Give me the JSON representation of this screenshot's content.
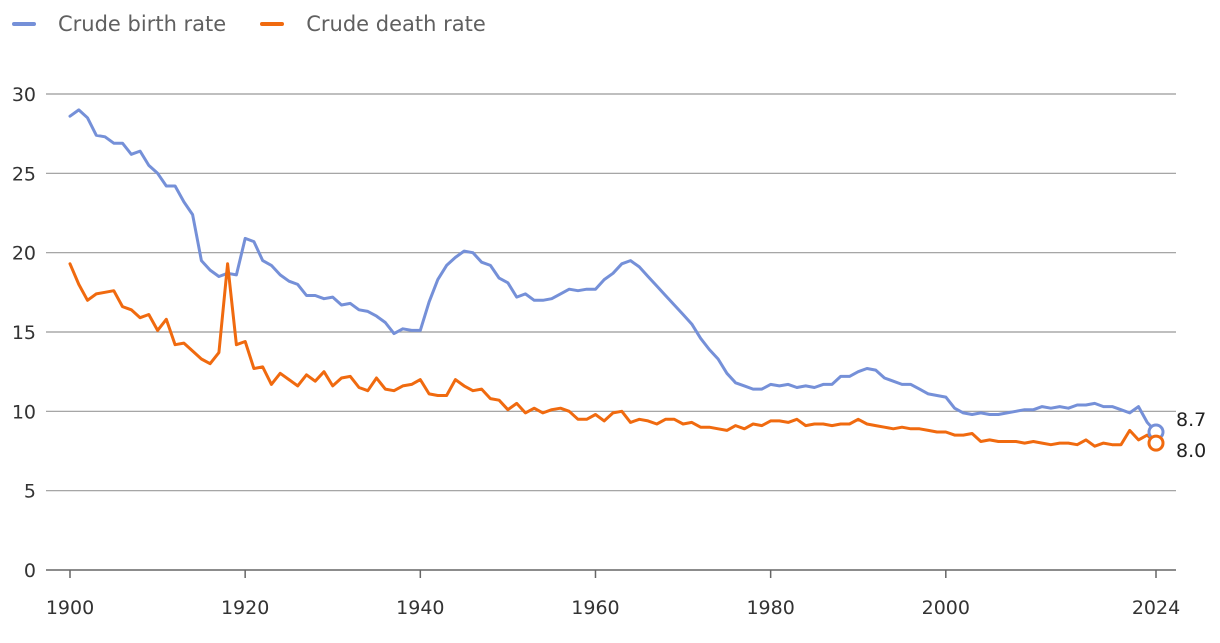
{
  "colors": {
    "birth": "#7590d8",
    "death": "#f06a0f",
    "grid": "#999999",
    "axis": "#666666",
    "text": "#333333"
  },
  "legend": [
    {
      "label": "Crude birth rate",
      "color": "#7590d8"
    },
    {
      "label": "Crude death rate",
      "color": "#f06a0f"
    }
  ],
  "end_labels": {
    "birth": "8.7",
    "death": "8.0"
  },
  "chart_data": {
    "type": "line",
    "title": "",
    "xlabel": "",
    "ylabel": "",
    "xlim": [
      1900,
      2024
    ],
    "ylim": [
      0,
      30
    ],
    "x_ticks": [
      1900,
      1920,
      1940,
      1960,
      1980,
      2000,
      2024
    ],
    "y_ticks": [
      0,
      5,
      10,
      15,
      20,
      25,
      30
    ],
    "grid": true,
    "legend_position": "top-left",
    "x": [
      1900,
      1901,
      1902,
      1903,
      1904,
      1905,
      1906,
      1907,
      1908,
      1909,
      1910,
      1911,
      1912,
      1913,
      1914,
      1915,
      1916,
      1917,
      1918,
      1919,
      1920,
      1921,
      1922,
      1923,
      1924,
      1925,
      1926,
      1927,
      1928,
      1929,
      1930,
      1931,
      1932,
      1933,
      1934,
      1935,
      1936,
      1937,
      1938,
      1939,
      1940,
      1941,
      1942,
      1943,
      1944,
      1945,
      1946,
      1947,
      1948,
      1949,
      1950,
      1951,
      1952,
      1953,
      1954,
      1955,
      1956,
      1957,
      1958,
      1959,
      1960,
      1961,
      1962,
      1963,
      1964,
      1965,
      1966,
      1967,
      1968,
      1969,
      1970,
      1971,
      1972,
      1973,
      1974,
      1975,
      1976,
      1977,
      1978,
      1979,
      1980,
      1981,
      1982,
      1983,
      1984,
      1985,
      1986,
      1987,
      1988,
      1989,
      1990,
      1991,
      1992,
      1993,
      1994,
      1995,
      1996,
      1997,
      1998,
      1999,
      2000,
      2001,
      2002,
      2003,
      2004,
      2005,
      2006,
      2007,
      2008,
      2009,
      2010,
      2011,
      2012,
      2013,
      2014,
      2015,
      2016,
      2017,
      2018,
      2019,
      2020,
      2021,
      2022,
      2023,
      2024
    ],
    "series": [
      {
        "name": "Crude birth rate",
        "values": [
          28.6,
          29.0,
          28.5,
          27.4,
          27.3,
          26.9,
          26.9,
          26.2,
          26.4,
          25.5,
          25.0,
          24.2,
          24.2,
          23.2,
          22.4,
          19.5,
          18.9,
          18.5,
          18.7,
          18.6,
          20.9,
          20.7,
          19.5,
          19.2,
          18.6,
          18.2,
          18.0,
          17.3,
          17.3,
          17.1,
          17.2,
          16.7,
          16.8,
          16.4,
          16.3,
          16.0,
          15.6,
          14.9,
          15.2,
          15.1,
          15.1,
          16.9,
          18.3,
          19.2,
          19.7,
          20.1,
          20.0,
          19.4,
          19.2,
          18.4,
          18.1,
          17.2,
          17.4,
          17.0,
          17.0,
          17.1,
          17.4,
          17.7,
          17.6,
          17.7,
          17.7,
          18.3,
          18.7,
          19.3,
          19.5,
          19.1,
          18.5,
          17.9,
          17.3,
          16.7,
          16.1,
          15.5,
          14.6,
          13.9,
          13.3,
          12.4,
          11.8,
          11.6,
          11.4,
          11.4,
          11.7,
          11.6,
          11.7,
          11.5,
          11.6,
          11.5,
          11.7,
          11.7,
          12.2,
          12.2,
          12.5,
          12.7,
          12.6,
          12.1,
          11.9,
          11.7,
          11.7,
          11.4,
          11.1,
          11.0,
          10.9,
          10.2,
          9.9,
          9.8,
          9.9,
          9.8,
          9.8,
          9.9,
          10.0,
          10.1,
          10.1,
          10.3,
          10.2,
          10.3,
          10.2,
          10.4,
          10.4,
          10.5,
          10.3,
          10.3,
          10.1,
          9.9,
          10.3,
          9.3,
          8.7
        ]
      },
      {
        "name": "Crude death rate",
        "values": [
          19.3,
          18.0,
          17.0,
          17.4,
          17.5,
          17.6,
          16.6,
          16.4,
          15.9,
          16.1,
          15.1,
          15.8,
          14.2,
          14.3,
          13.8,
          13.3,
          13.0,
          13.7,
          19.3,
          14.2,
          14.4,
          12.7,
          12.8,
          11.7,
          12.4,
          12.0,
          11.6,
          12.3,
          11.9,
          12.5,
          11.6,
          12.1,
          12.2,
          11.5,
          11.3,
          12.1,
          11.4,
          11.3,
          11.6,
          11.7,
          12.0,
          11.1,
          11.0,
          11.0,
          12.0,
          11.6,
          11.3,
          11.4,
          10.8,
          10.7,
          10.1,
          10.5,
          9.9,
          10.2,
          9.9,
          10.1,
          10.2,
          10.0,
          9.5,
          9.5,
          9.8,
          9.4,
          9.9,
          10.0,
          9.3,
          9.5,
          9.4,
          9.2,
          9.5,
          9.5,
          9.2,
          9.3,
          9.0,
          9.0,
          8.9,
          8.8,
          9.1,
          8.9,
          9.2,
          9.1,
          9.4,
          9.4,
          9.3,
          9.5,
          9.1,
          9.2,
          9.2,
          9.1,
          9.2,
          9.2,
          9.5,
          9.2,
          9.1,
          9.0,
          8.9,
          9.0,
          8.9,
          8.9,
          8.8,
          8.7,
          8.7,
          8.5,
          8.5,
          8.6,
          8.1,
          8.2,
          8.1,
          8.1,
          8.1,
          8.0,
          8.1,
          8.0,
          7.9,
          8.0,
          8.0,
          7.9,
          8.2,
          7.8,
          8.0,
          7.9,
          7.9,
          8.8,
          8.2,
          8.5,
          8.0
        ]
      }
    ]
  }
}
